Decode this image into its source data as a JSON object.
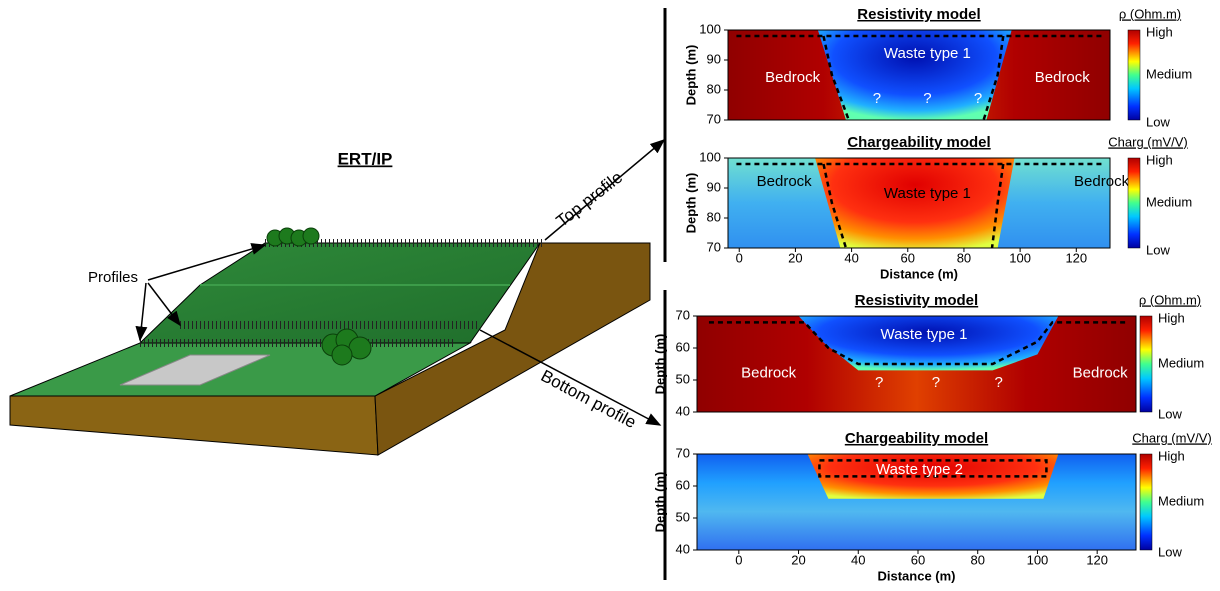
{
  "diagram": {
    "title": "ERT/IP",
    "profiles_label": "Profiles",
    "top_profile_label": "Top profile",
    "bottom_profile_label": "Bottom profile"
  },
  "panels": [
    {
      "title": "Resistivity model",
      "colorbar_title": "ρ (Ohm.m)",
      "colorbar_labels": [
        "High",
        "Medium",
        "Low"
      ],
      "ylabel": "Depth (m)",
      "ylim": [
        70,
        100
      ],
      "yticks": [
        70,
        80,
        90,
        100
      ],
      "xlim": [
        -4,
        132
      ],
      "labels": [
        "Bedrock",
        "Waste type 1",
        "Bedrock",
        "?",
        "?",
        "?"
      ]
    },
    {
      "title": "Chargeability model",
      "colorbar_title": "Charg (mV/V)",
      "colorbar_labels": [
        "High",
        "Medium",
        "Low"
      ],
      "ylabel": "Depth (m)",
      "ylim": [
        70,
        100
      ],
      "yticks": [
        70,
        80,
        90,
        100
      ],
      "xlim": [
        -4,
        132
      ],
      "xticks": [
        0,
        20,
        40,
        60,
        80,
        100,
        120
      ],
      "xlabel": "Distance (m)",
      "labels": [
        "Bedrock",
        "Waste type 1",
        "Bedrock"
      ]
    },
    {
      "title": "Resistivity model",
      "colorbar_title": "ρ (Ohm.m)",
      "colorbar_labels": [
        "High",
        "Medium",
        "Low"
      ],
      "ylabel": "Depth (m)",
      "ylim": [
        40,
        70
      ],
      "yticks": [
        40,
        50,
        60,
        70
      ],
      "xlim": [
        -14,
        133
      ],
      "labels": [
        "Bedrock",
        "Waste type 1",
        "Bedrock",
        "?",
        "?",
        "?"
      ]
    },
    {
      "title": "Chargeability model",
      "colorbar_title": "Charg (mV/V)",
      "colorbar_labels": [
        "High",
        "Medium",
        "Low"
      ],
      "ylabel": "Depth (m)",
      "ylim": [
        40,
        70
      ],
      "yticks": [
        40,
        50,
        60,
        70
      ],
      "xlim": [
        -14,
        133
      ],
      "xticks": [
        0,
        20,
        40,
        60,
        80,
        100,
        120
      ],
      "xlabel": "Distance (m)",
      "labels": [
        "Waste type 2"
      ]
    }
  ]
}
